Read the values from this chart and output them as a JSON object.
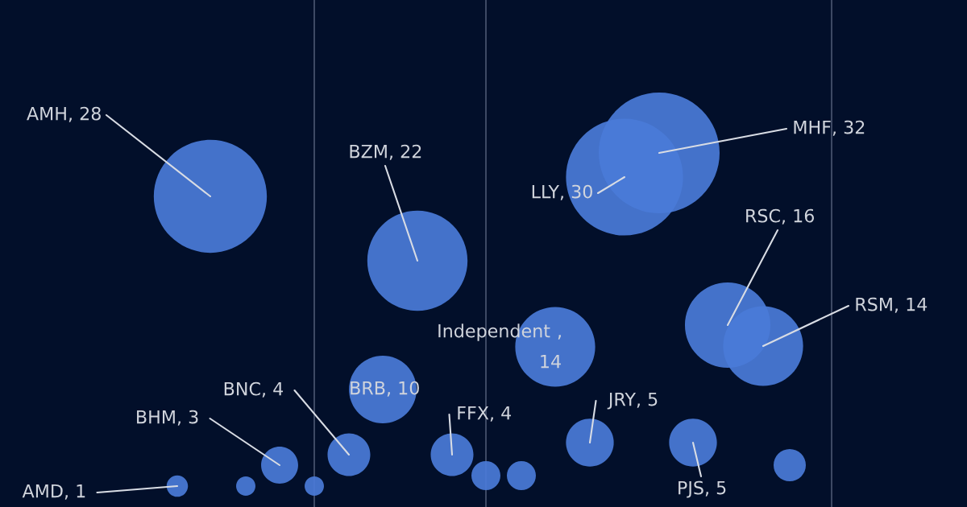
{
  "chart_data": {
    "type": "other",
    "color": "#4a7bd8",
    "categories": [
      "AMH",
      "BZM",
      "LLY",
      "MHF",
      "RSC",
      "RSM",
      "Independent",
      "BRB",
      "BNC",
      "BHM",
      "FFX",
      "JRY",
      "PJS",
      "AMD",
      null,
      null,
      null,
      null,
      null
    ],
    "values": [
      28,
      22,
      30,
      32,
      16,
      14,
      14,
      10,
      4,
      3,
      4,
      5,
      5,
      1,
      null,
      null,
      null,
      null,
      null
    ],
    "value_labels": [
      ", 28",
      ", 22",
      ", 30",
      ", 32",
      ", 16",
      ", 14",
      ",\n14",
      ", 10",
      ", 4",
      ", 3",
      ", 4",
      ", 5",
      ", 5",
      ", 1",
      null,
      null,
      null,
      null,
      null
    ]
  }
}
